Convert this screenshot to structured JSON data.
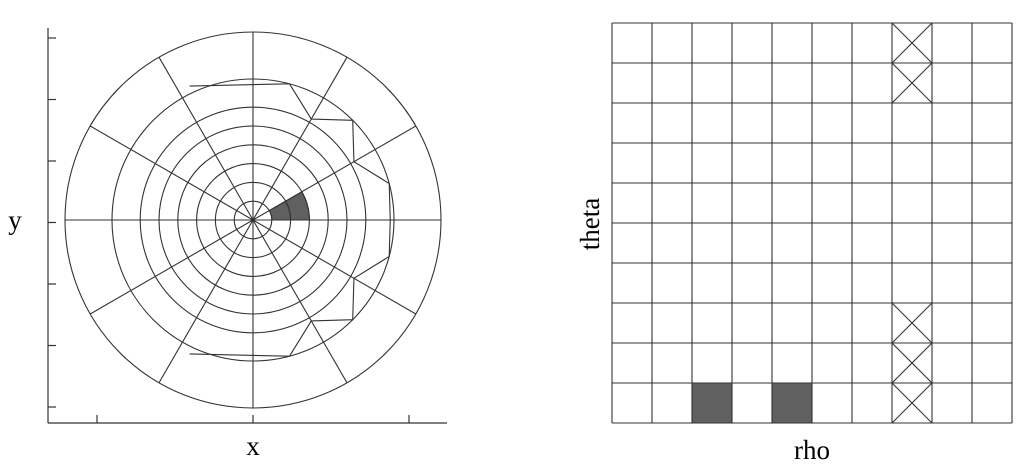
{
  "left_panel": {
    "xlabel": "x",
    "ylabel": "y",
    "ring_radii_fraction": [
      0.1,
      0.2,
      0.3,
      0.4,
      0.5,
      0.6,
      0.75,
      1.0
    ],
    "spoke_count": 12,
    "shaded_cells": [
      {
        "ring_inner": 0.1,
        "ring_outer": 0.2,
        "angle_from_deg": 0,
        "angle_to_deg": 30
      },
      {
        "ring_inner": 0.2,
        "ring_outer": 0.3,
        "angle_from_deg": 0,
        "angle_to_deg": 30
      }
    ],
    "star_polygon_rings": [
      0.75,
      1.0
    ],
    "tick_count_y": 7,
    "tick_count_x": 3
  },
  "right_panel": {
    "xlabel": "rho",
    "ylabel": "theta",
    "columns": 10,
    "rows": 10,
    "filled_cells": [
      {
        "col": 2,
        "row": 9
      },
      {
        "col": 4,
        "row": 9
      }
    ],
    "crossed_cells": [
      {
        "col": 7,
        "row": 0
      },
      {
        "col": 7,
        "row": 1
      },
      {
        "col": 7,
        "row": 7
      },
      {
        "col": 7,
        "row": 8
      },
      {
        "col": 7,
        "row": 9
      }
    ]
  },
  "colors": {
    "line": "#333333",
    "fill": "#606060",
    "background": "#ffffff"
  }
}
